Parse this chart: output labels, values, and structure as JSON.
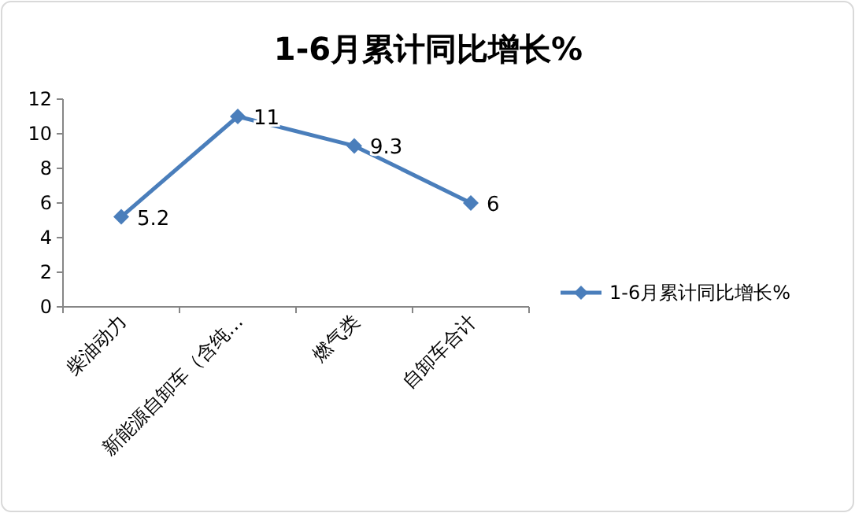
{
  "chart_data": {
    "type": "line",
    "title": "1-6月累计同比增长%",
    "categories": [
      "柴油动力",
      "新能源自卸车（含纯…",
      "燃气类",
      "自卸车合计"
    ],
    "series": [
      {
        "name": "1-6月累计同比增长%",
        "color": "#4a7ebb",
        "values": [
          5.2,
          11,
          9.3,
          6
        ]
      }
    ],
    "ylim": [
      0,
      12
    ],
    "yticks": [
      0,
      2,
      4,
      6,
      8,
      10,
      12
    ],
    "grid": false,
    "legend": "right",
    "marker": "diamond",
    "line_style": "solid",
    "data_labels": true
  }
}
